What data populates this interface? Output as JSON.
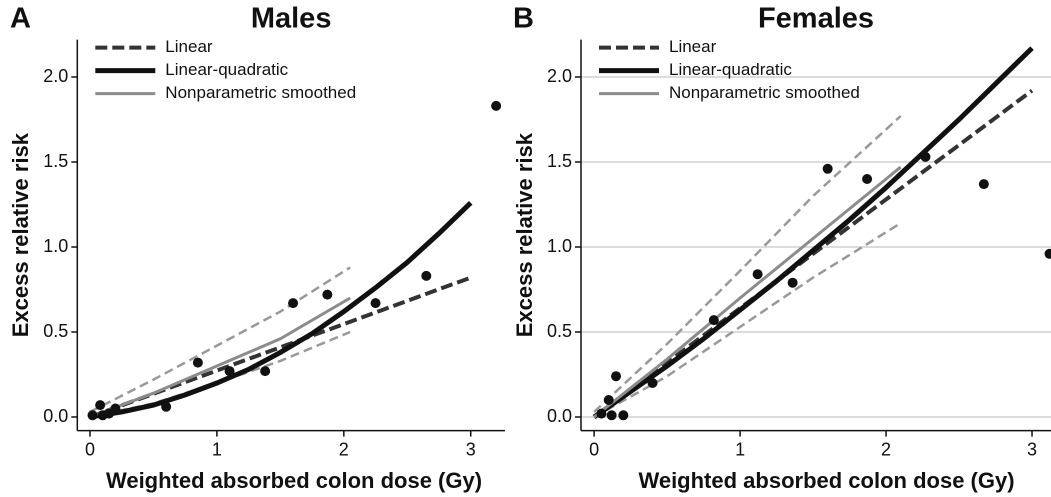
{
  "chart_data": [
    {
      "type": "line",
      "panel": "A",
      "title": "Males",
      "x_label": "Weighted absorbed colon dose (Gy)",
      "y_label": "Excess relative risk",
      "xlim": [
        -0.1,
        3.27
      ],
      "ylim": [
        -0.08,
        2.22
      ],
      "grid": false,
      "xticks": [
        0,
        1,
        2,
        3
      ],
      "yticks": [
        {
          "value": 0,
          "label": "0.0"
        },
        0.5,
        {
          "value": 1,
          "label": "1.0"
        },
        1.5,
        {
          "value": 2,
          "label": "2.0"
        }
      ],
      "series": [
        {
          "name": "Linear",
          "color": "#333333",
          "dash": "12 5",
          "width": 4,
          "x": [
            0,
            3
          ],
          "values": [
            0,
            0.82
          ]
        },
        {
          "name": "Linear-quadratic",
          "color": "#111111",
          "dash": "none",
          "width": 5,
          "x": [
            0,
            0.25,
            0.5,
            0.75,
            1,
            1.25,
            1.5,
            1.75,
            2,
            2.25,
            2.5,
            2.75,
            3
          ],
          "values": [
            0,
            0.03,
            0.07,
            0.13,
            0.2,
            0.28,
            0.38,
            0.49,
            0.62,
            0.76,
            0.91,
            1.08,
            1.26
          ]
        },
        {
          "name": "Nonparametric smoothed",
          "color": "#8c8c8c",
          "dash": "none",
          "width": 3,
          "x": [
            0,
            0.5,
            1,
            1.5,
            2.05
          ],
          "values": [
            0,
            0.14,
            0.3,
            0.46,
            0.7
          ]
        }
      ],
      "ci_color": "#999999",
      "ci_bands": [
        {
          "x": [
            0,
            0.5,
            1,
            1.5,
            2.05
          ],
          "values": [
            0.03,
            0.22,
            0.42,
            0.62,
            0.88
          ]
        },
        {
          "x": [
            0,
            0.5,
            1,
            1.5,
            2.05
          ],
          "values": [
            0,
            0.08,
            0.2,
            0.33,
            0.5
          ]
        }
      ],
      "points": {
        "color": "#111111",
        "x": [
          0.02,
          0.08,
          0.1,
          0.15,
          0.2,
          0.6,
          0.85,
          1.1,
          1.38,
          1.6,
          1.87,
          2.25,
          2.65,
          3.2
        ],
        "values": [
          0.01,
          0.07,
          0.01,
          0.02,
          0.05,
          0.06,
          0.32,
          0.27,
          0.27,
          0.67,
          0.72,
          0.67,
          0.83,
          1.83
        ]
      }
    },
    {
      "type": "line",
      "panel": "B",
      "title": "Females",
      "x_label": "Weighted absorbed colon dose (Gy)",
      "y_label": "Excess relative risk",
      "xlim": [
        -0.09,
        3.13
      ],
      "ylim": [
        -0.08,
        2.22
      ],
      "grid": true,
      "xticks": [
        0,
        1,
        2,
        3
      ],
      "yticks": [
        {
          "value": 0,
          "label": "0.0"
        },
        0.5,
        {
          "value": 1,
          "label": "1.0"
        },
        1.5,
        {
          "value": 2,
          "label": "2.0"
        }
      ],
      "series": [
        {
          "name": "Linear",
          "color": "#333333",
          "dash": "12 5",
          "width": 4,
          "x": [
            0,
            3
          ],
          "values": [
            0,
            1.92
          ]
        },
        {
          "name": "Linear-quadratic",
          "color": "#111111",
          "dash": "none",
          "width": 5,
          "x": [
            0,
            0.25,
            0.5,
            0.75,
            1,
            1.25,
            1.5,
            1.75,
            2,
            2.25,
            2.5,
            2.75,
            3
          ],
          "values": [
            0,
            0.15,
            0.3,
            0.46,
            0.63,
            0.8,
            0.98,
            1.16,
            1.35,
            1.55,
            1.75,
            1.96,
            2.17
          ]
        },
        {
          "name": "Nonparametric smoothed",
          "color": "#8c8c8c",
          "dash": "none",
          "width": 3,
          "x": [
            0,
            0.5,
            1,
            1.5,
            2.1
          ],
          "values": [
            0,
            0.34,
            0.7,
            1.05,
            1.47
          ]
        }
      ],
      "ci_color": "#999999",
      "ci_bands": [
        {
          "x": [
            0,
            0.5,
            1,
            1.5,
            2.1
          ],
          "values": [
            0.03,
            0.43,
            0.86,
            1.3,
            1.77
          ]
        },
        {
          "x": [
            0,
            0.5,
            1,
            1.5,
            2.1
          ],
          "values": [
            0,
            0.24,
            0.53,
            0.82,
            1.14
          ]
        }
      ],
      "points": {
        "color": "#111111",
        "x": [
          0.05,
          0.1,
          0.12,
          0.15,
          0.2,
          0.4,
          0.82,
          1.12,
          1.36,
          1.6,
          1.87,
          2.27,
          2.67,
          3.12
        ],
        "values": [
          0.02,
          0.1,
          0.01,
          0.24,
          0.01,
          0.2,
          0.57,
          0.84,
          0.79,
          1.46,
          1.4,
          1.53,
          1.37,
          0.96
        ]
      }
    }
  ]
}
